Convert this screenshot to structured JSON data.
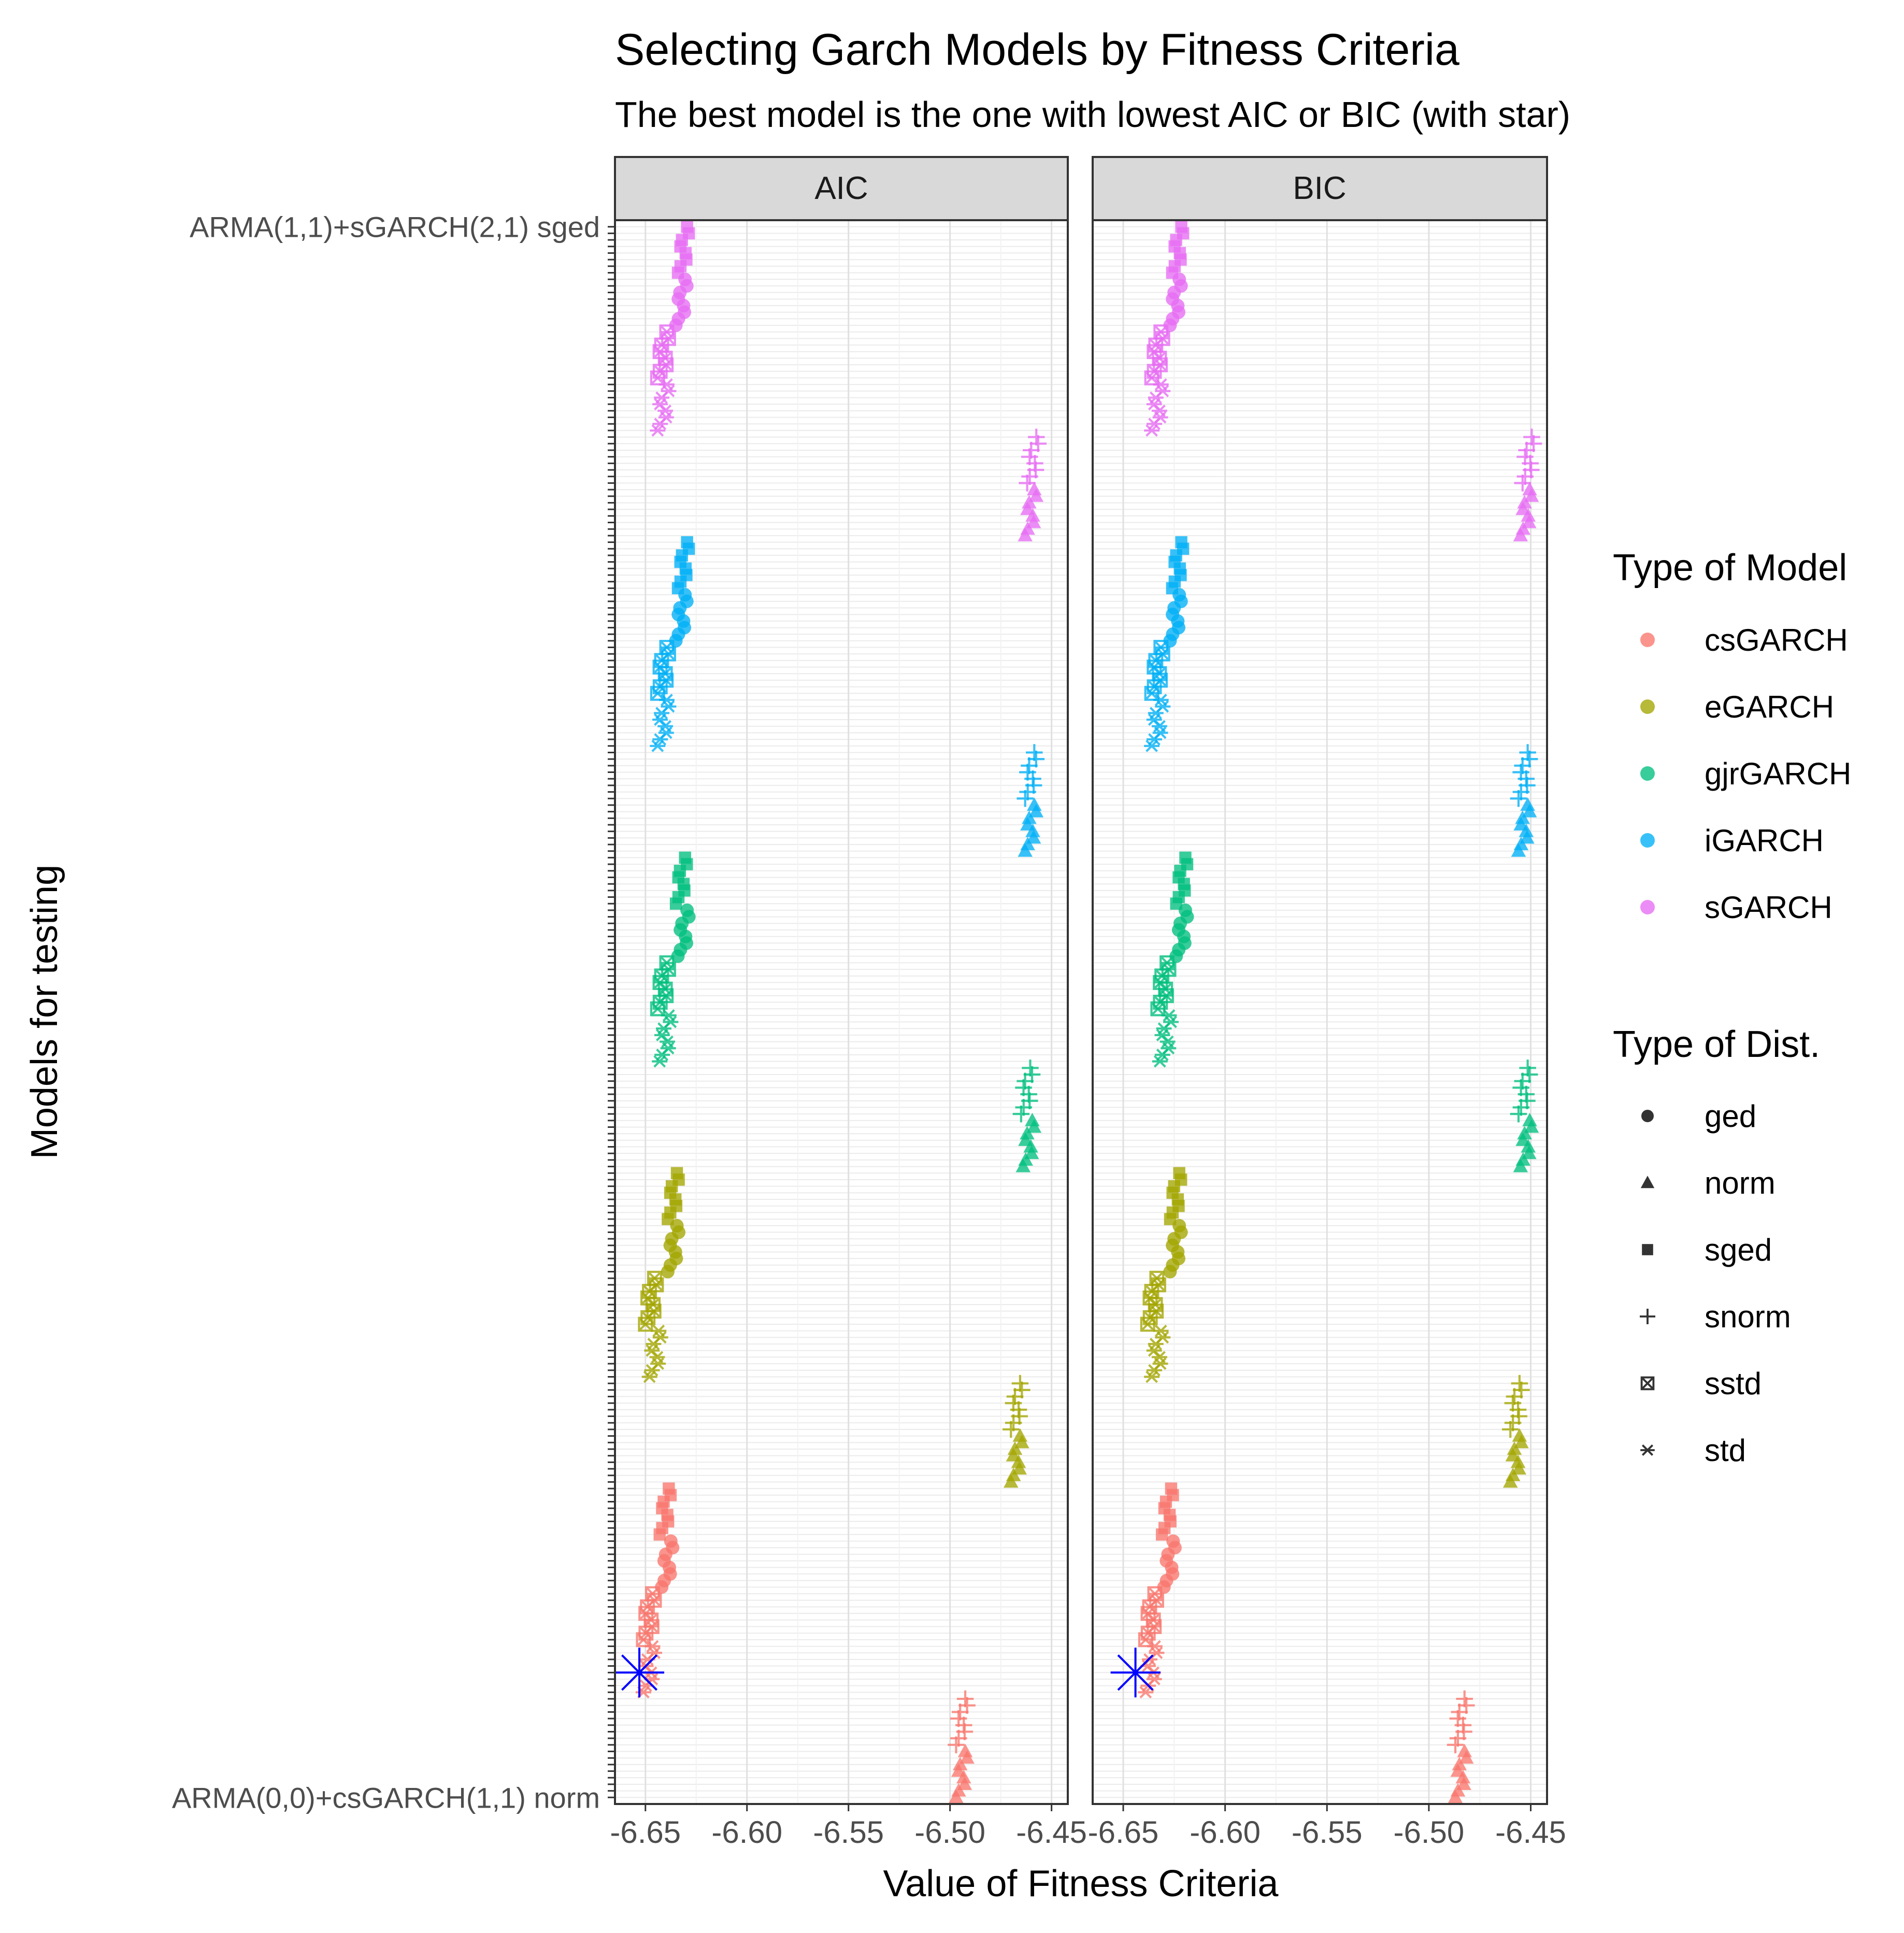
{
  "chart_data": {
    "type": "scatter",
    "title": "Selecting Garch Models by Fitness Criteria",
    "subtitle": "The best model is the one with lowest AIC or BIC (with star)",
    "xlabel": "Value of Fitness Criteria",
    "ylabel": "Models for testing",
    "facets": [
      "AIC",
      "BIC"
    ],
    "xlim": [
      -6.665,
      -6.442
    ],
    "x_ticks": [
      -6.65,
      -6.6,
      -6.55,
      -6.5,
      -6.45
    ],
    "x_tick_labels": [
      "-6.65",
      "-6.60",
      "-6.55",
      "-6.50",
      "-6.45"
    ],
    "y_labels_visible": [
      "ARMA(1,1)+sGARCH(2,1) sged",
      "ARMA(0,0)+csGARCH(1,1) norm"
    ],
    "legend_model": {
      "title": "Type of Model",
      "entries": [
        {
          "name": "csGARCH",
          "color": "#F8766D"
        },
        {
          "name": "eGARCH",
          "color": "#A3A500"
        },
        {
          "name": "gjrGARCH",
          "color": "#00BF7D"
        },
        {
          "name": "iGARCH",
          "color": "#00B0F6"
        },
        {
          "name": "sGARCH",
          "color": "#E76BF3"
        }
      ]
    },
    "legend_dist": {
      "title": "Type of Dist.",
      "entries": [
        {
          "name": "ged",
          "shape": "circle"
        },
        {
          "name": "norm",
          "shape": "triangle"
        },
        {
          "name": "sged",
          "shape": "square"
        },
        {
          "name": "snorm",
          "shape": "plus"
        },
        {
          "name": "sstd",
          "shape": "boxx"
        },
        {
          "name": "std",
          "shape": "asterisk"
        }
      ]
    },
    "models_order_bottom_to_top": [
      "csGARCH",
      "eGARCH",
      "gjrGARCH",
      "iGARCH",
      "sGARCH"
    ],
    "dists_order_bottom_to_top": [
      "norm",
      "snorm",
      "std",
      "sstd",
      "ged",
      "sged"
    ],
    "arma_variants_per_dist": 4,
    "garch_orders_per_variant": 2,
    "values": {
      "csGARCH": {
        "norm": {
          "AIC": -6.494,
          "BIC": -6.484
        },
        "snorm": {
          "AIC": -6.494,
          "BIC": -6.484
        },
        "std": {
          "AIC": -6.648,
          "BIC": -6.636
        },
        "sstd": {
          "AIC": -6.648,
          "BIC": -6.636
        },
        "ged": {
          "AIC": -6.639,
          "BIC": -6.627
        },
        "sged": {
          "AIC": -6.64,
          "BIC": -6.628
        }
      },
      "eGARCH": {
        "norm": {
          "AIC": -6.467,
          "BIC": -6.457
        },
        "snorm": {
          "AIC": -6.467,
          "BIC": -6.457
        },
        "std": {
          "AIC": -6.645,
          "BIC": -6.633
        },
        "sstd": {
          "AIC": -6.647,
          "BIC": -6.635
        },
        "ged": {
          "AIC": -6.636,
          "BIC": -6.624
        },
        "sged": {
          "AIC": -6.636,
          "BIC": -6.624
        }
      },
      "gjrGARCH": {
        "norm": {
          "AIC": -6.461,
          "BIC": -6.452
        },
        "snorm": {
          "AIC": -6.462,
          "BIC": -6.453
        },
        "std": {
          "AIC": -6.64,
          "BIC": -6.629
        },
        "sstd": {
          "AIC": -6.641,
          "BIC": -6.63
        },
        "ged": {
          "AIC": -6.631,
          "BIC": -6.621
        },
        "sged": {
          "AIC": -6.632,
          "BIC": -6.621
        }
      },
      "iGARCH": {
        "norm": {
          "AIC": -6.46,
          "BIC": -6.453
        },
        "snorm": {
          "AIC": -6.46,
          "BIC": -6.453
        },
        "std": {
          "AIC": -6.641,
          "BIC": -6.633
        },
        "sstd": {
          "AIC": -6.641,
          "BIC": -6.633
        },
        "ged": {
          "AIC": -6.632,
          "BIC": -6.624
        },
        "sged": {
          "AIC": -6.631,
          "BIC": -6.623
        }
      },
      "sGARCH": {
        "norm": {
          "AIC": -6.46,
          "BIC": -6.452
        },
        "snorm": {
          "AIC": -6.459,
          "BIC": -6.451
        },
        "std": {
          "AIC": -6.641,
          "BIC": -6.633
        },
        "sstd": {
          "AIC": -6.641,
          "BIC": -6.633
        },
        "ged": {
          "AIC": -6.632,
          "BIC": -6.624
        },
        "sged": {
          "AIC": -6.631,
          "BIC": -6.623
        }
      }
    },
    "best": {
      "model": "csGARCH",
      "dist": "std",
      "AIC": -6.653,
      "BIC": -6.644,
      "color": "#0000FF"
    },
    "grid": true
  }
}
